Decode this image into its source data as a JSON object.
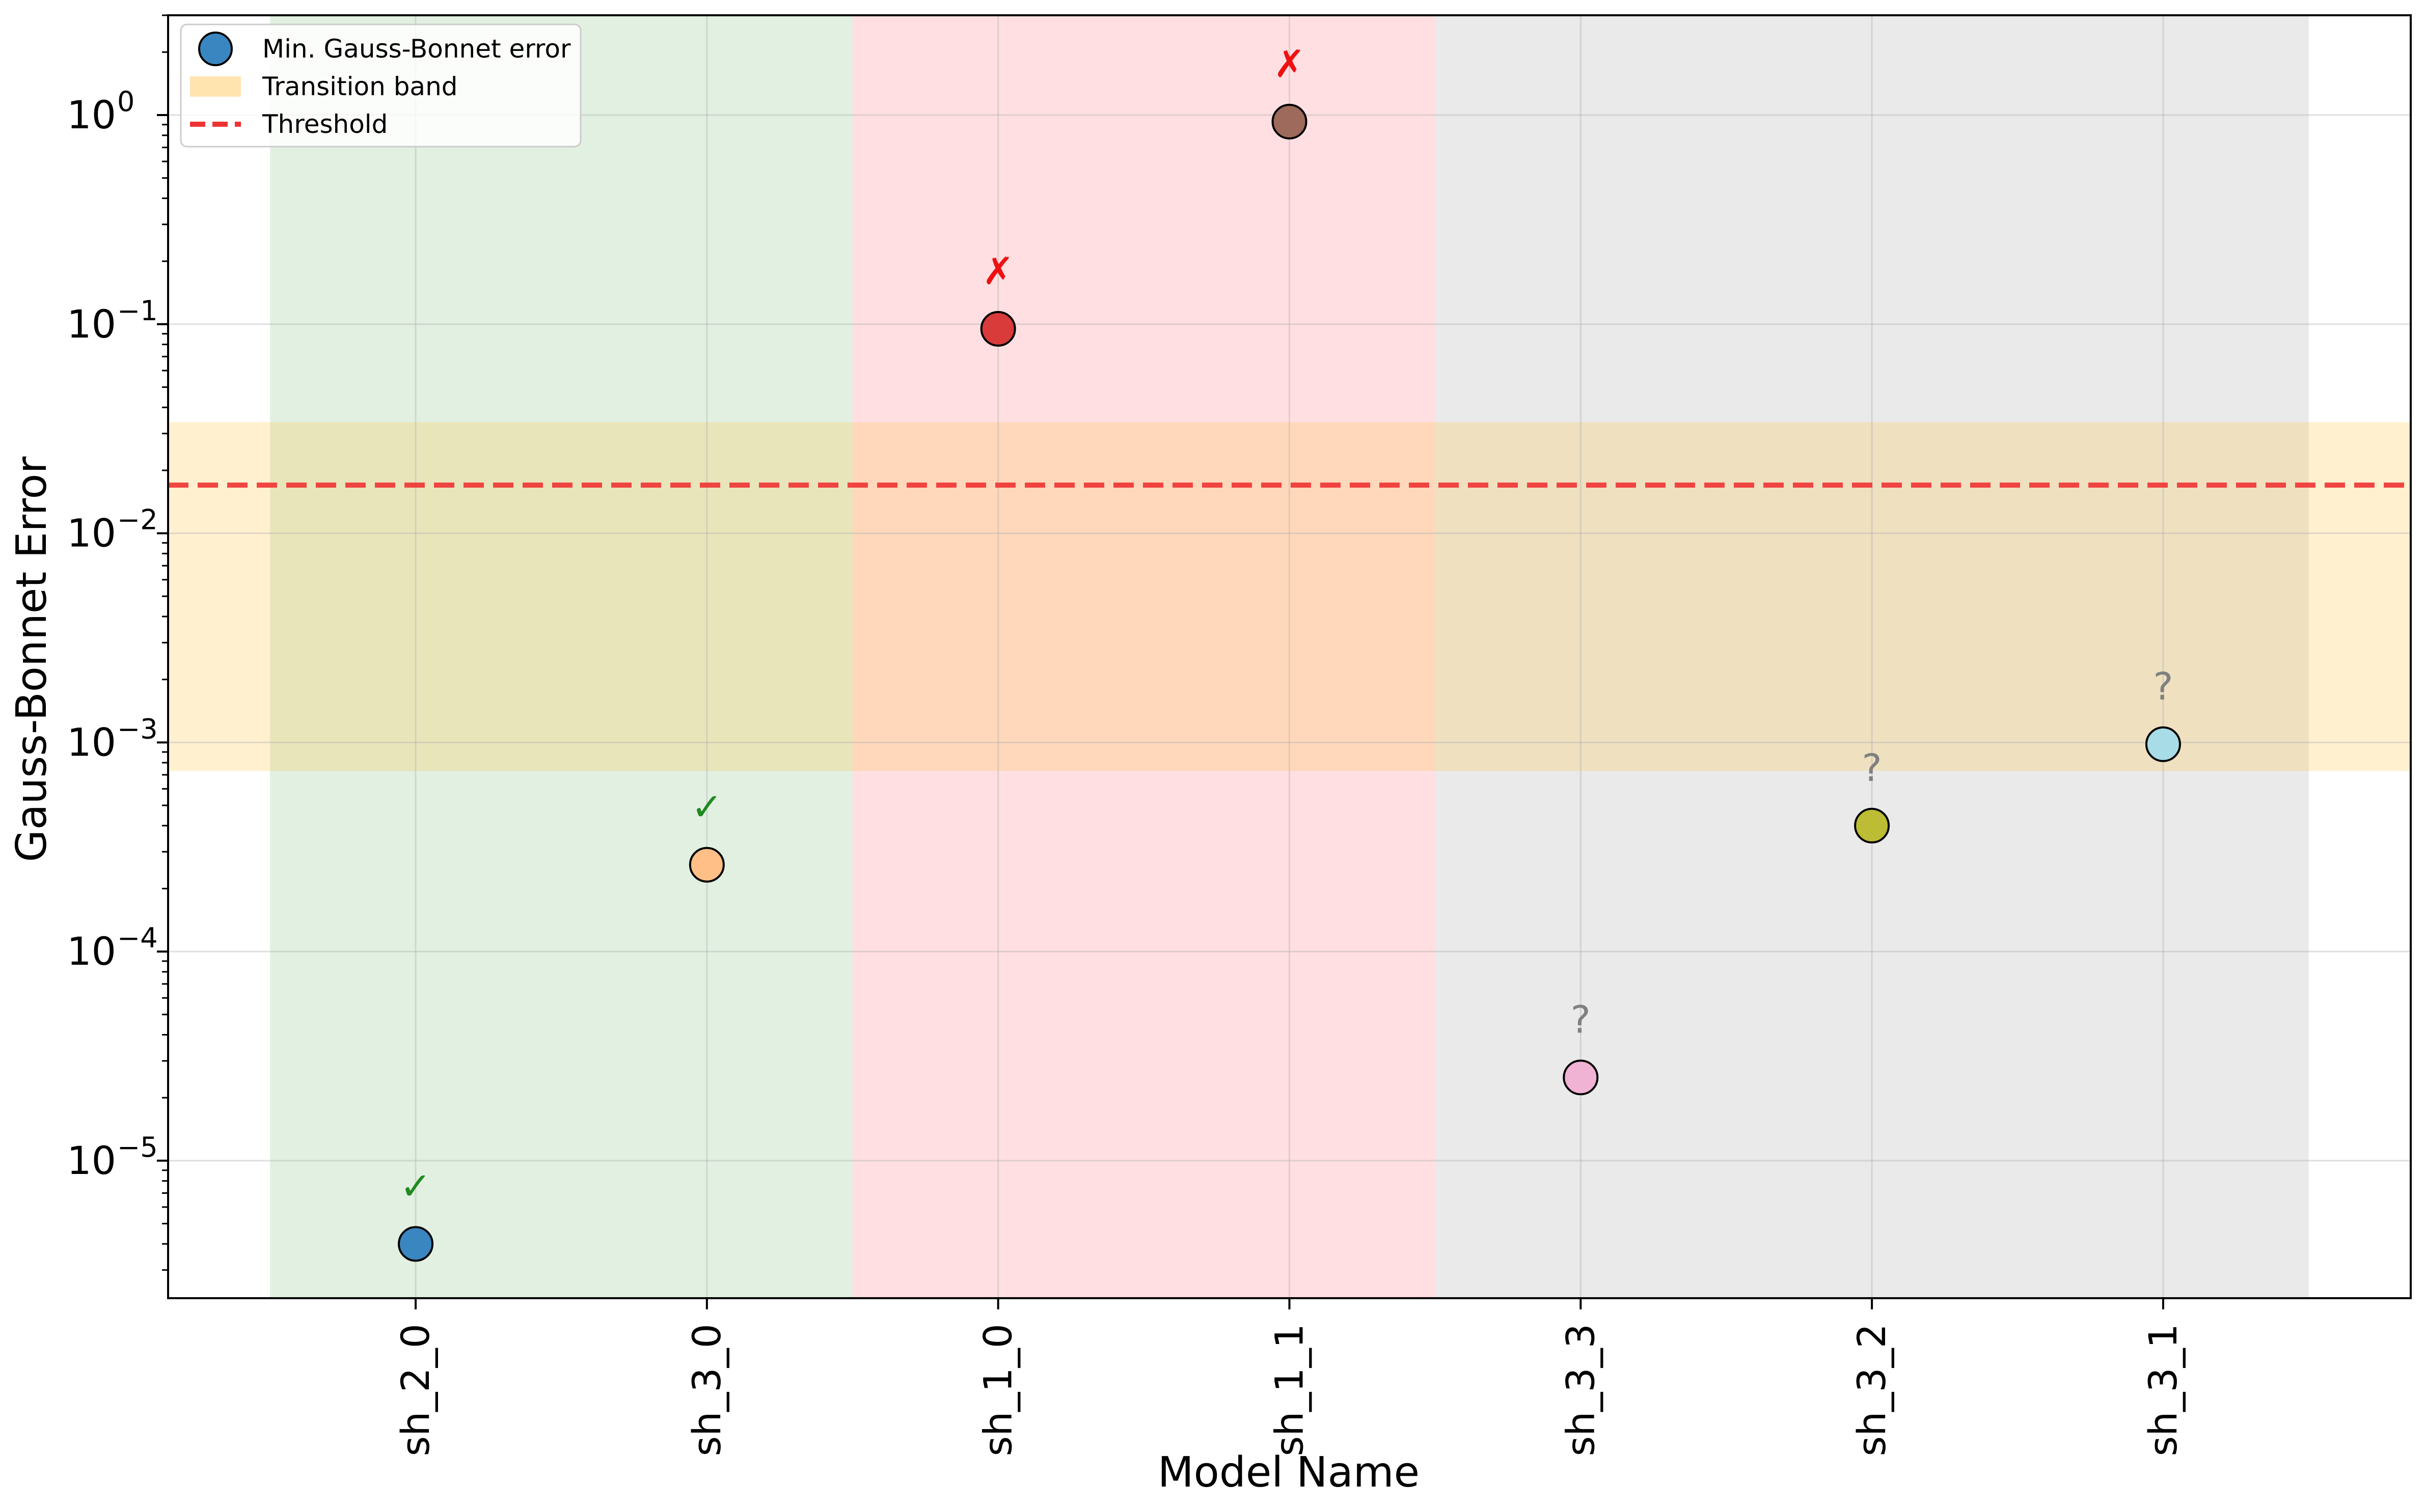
{
  "chart_data": {
    "type": "scatter",
    "title": "",
    "xlabel": "Model Name",
    "ylabel": "Gauss-Bonnet Error",
    "yscale": "log",
    "ylim": [
      2.2e-06,
      3.0
    ],
    "categories": [
      "sh_2_0",
      "sh_3_0",
      "sh_1_0",
      "sh_1_1",
      "sh_3_3",
      "sh_3_2",
      "sh_3_1"
    ],
    "values": [
      4e-06,
      0.00026,
      0.095,
      0.93,
      2.5e-05,
      0.0004,
      0.00098
    ],
    "point_colors": [
      "#3a86c0",
      "#ffbf86",
      "#d93a3a",
      "#9e6a5c",
      "#f0b3d4",
      "#bcbc35",
      "#a8dce6"
    ],
    "markers": [
      "✓",
      "✓",
      "✗",
      "✗",
      "?",
      "?",
      "?"
    ],
    "marker_colors": [
      "#1f8a1f",
      "#1f8a1f",
      "#ee1111",
      "#ee1111",
      "#808080",
      "#808080",
      "#808080"
    ],
    "regions": [
      {
        "from_index": 0,
        "to_index": 1,
        "color": "#c9e4c9"
      },
      {
        "from_index": 2,
        "to_index": 3,
        "color": "#ffc5cb"
      },
      {
        "from_index": 4,
        "to_index": 6,
        "color": "#d9d9d9"
      }
    ],
    "threshold": 0.017,
    "transition_band": [
      0.00073,
      0.034
    ],
    "yticks": [
      {
        "value": 1e-05,
        "base": "10",
        "exp": "−5"
      },
      {
        "value": 0.0001,
        "base": "10",
        "exp": "−4"
      },
      {
        "value": 0.001,
        "base": "10",
        "exp": "−3"
      },
      {
        "value": 0.01,
        "base": "10",
        "exp": "−2"
      },
      {
        "value": 0.1,
        "base": "10",
        "exp": "−1"
      },
      {
        "value": 1,
        "base": "10",
        "exp": "0"
      }
    ],
    "legend": {
      "location": "upper-left",
      "entries": [
        {
          "label": "Min. Gauss-Bonnet error",
          "kind": "marker",
          "color": "#3a86c0"
        },
        {
          "label": "Transition band",
          "kind": "patch",
          "color": "#ffe4b0"
        },
        {
          "label": "Threshold",
          "kind": "dashed-line",
          "color": "#ee3333"
        }
      ]
    },
    "grid": true
  }
}
